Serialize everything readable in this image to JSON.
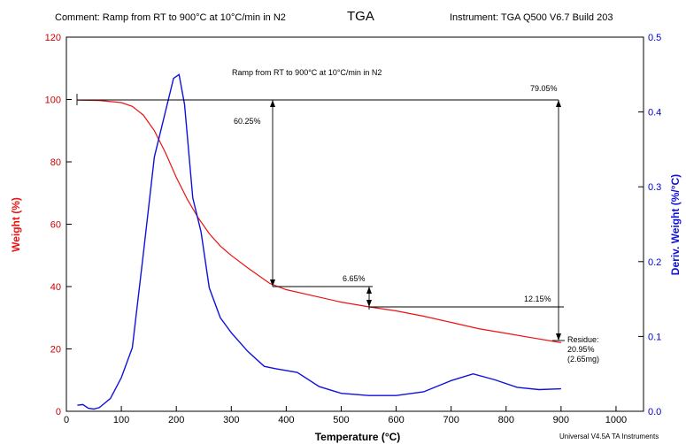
{
  "header": {
    "comment": "Comment: Ramp from RT to 900°C at 10°C/min in N2",
    "title": "TGA",
    "instrument": "Instrument: TGA Q500 V6.7 Build 203"
  },
  "footer": {
    "software": "Universal V4.5A TA Instruments"
  },
  "colors": {
    "weight": "#ee1111",
    "derivative": "#1111dd",
    "axis_left": "#cc0000",
    "axis_right": "#0000cc"
  },
  "chart_data": {
    "type": "line",
    "inner_title": "Ramp from RT to 900°C at 10°C/min in N2",
    "xlabel": "Temperature (°C)",
    "ylabel_left": "Weight (%)",
    "ylabel_right": "Deriv. Weight (%/°C)",
    "xlim": [
      0,
      1050
    ],
    "ylim_left": [
      0,
      120
    ],
    "ylim_right": [
      0.0,
      0.5
    ],
    "x_ticks": [
      0,
      100,
      200,
      300,
      400,
      500,
      600,
      700,
      800,
      900,
      1000
    ],
    "y_ticks_left": [
      0,
      20,
      40,
      60,
      80,
      100,
      120
    ],
    "y_ticks_right": [
      "0.0",
      "0.1",
      "0.2",
      "0.3",
      "0.4",
      "0.5"
    ],
    "series": [
      {
        "name": "Weight",
        "axis": "left",
        "x": [
          20,
          60,
          100,
          120,
          140,
          160,
          180,
          200,
          220,
          240,
          260,
          280,
          300,
          330,
          370,
          400,
          450,
          500,
          550,
          600,
          650,
          700,
          750,
          800,
          850,
          900
        ],
        "y": [
          99.8,
          99.7,
          99.0,
          97.8,
          95.0,
          90.0,
          83.0,
          75.0,
          68.0,
          62.0,
          57.0,
          53.0,
          50.0,
          46.0,
          41.0,
          39.0,
          37.0,
          35.0,
          33.5,
          32.2,
          30.5,
          28.5,
          26.5,
          25.0,
          23.5,
          22.0
        ]
      },
      {
        "name": "Deriv. Weight",
        "axis": "right",
        "x": [
          20,
          30,
          40,
          50,
          60,
          80,
          100,
          120,
          140,
          160,
          180,
          195,
          205,
          215,
          230,
          245,
          260,
          280,
          300,
          330,
          360,
          380,
          420,
          460,
          500,
          550,
          600,
          650,
          700,
          740,
          780,
          820,
          860,
          900
        ],
        "y": [
          0.008,
          0.009,
          0.004,
          0.003,
          0.005,
          0.017,
          0.045,
          0.085,
          0.21,
          0.34,
          0.4,
          0.445,
          0.45,
          0.41,
          0.285,
          0.24,
          0.165,
          0.125,
          0.105,
          0.08,
          0.06,
          0.057,
          0.052,
          0.033,
          0.024,
          0.021,
          0.021,
          0.026,
          0.041,
          0.05,
          0.042,
          0.032,
          0.029,
          0.03
        ]
      }
    ],
    "annotations": {
      "step_total": "79.05%",
      "step_1": "60.25%",
      "step_2": "6.65%",
      "step_3": "12.15%",
      "residue_label": "Residue:",
      "residue_pct": "20.95%",
      "residue_mg": "(2.65mg)"
    }
  }
}
